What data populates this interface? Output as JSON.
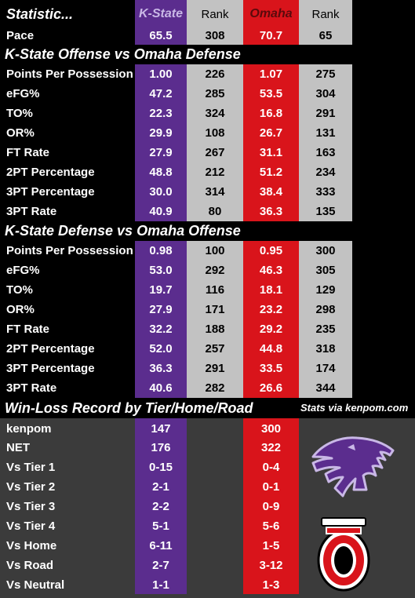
{
  "header": {
    "statistic": "Statistic...",
    "team1": "K-State",
    "rank1": "Rank",
    "team2": "Omaha",
    "rank2": "Rank"
  },
  "pace": {
    "label": "Pace",
    "v1": "65.5",
    "r1": "308",
    "v2": "70.7",
    "r2": "65"
  },
  "section_offense": {
    "title": "K-State Offense vs Omaha Defense",
    "rows": [
      {
        "label": "Points Per Possession",
        "v1": "1.00",
        "r1": "226",
        "v2": "1.07",
        "r2": "275"
      },
      {
        "label": "eFG%",
        "v1": "47.2",
        "r1": "285",
        "v2": "53.5",
        "r2": "304"
      },
      {
        "label": "TO%",
        "v1": "22.3",
        "r1": "324",
        "v2": "16.8",
        "r2": "291"
      },
      {
        "label": "OR%",
        "v1": "29.9",
        "r1": "108",
        "v2": "26.7",
        "r2": "131"
      },
      {
        "label": "FT Rate",
        "v1": "27.9",
        "r1": "267",
        "v2": "31.1",
        "r2": "163"
      },
      {
        "label": "2PT Percentage",
        "v1": "48.8",
        "r1": "212",
        "v2": "51.2",
        "r2": "234"
      },
      {
        "label": "3PT Percentage",
        "v1": "30.0",
        "r1": "314",
        "v2": "38.4",
        "r2": "333"
      },
      {
        "label": "3PT Rate",
        "v1": "40.9",
        "r1": "80",
        "v2": "36.3",
        "r2": "135"
      }
    ]
  },
  "section_defense": {
    "title": "K-State Defense vs Omaha Offense",
    "rows": [
      {
        "label": "Points Per Possession",
        "v1": "0.98",
        "r1": "100",
        "v2": "0.95",
        "r2": "300"
      },
      {
        "label": "eFG%",
        "v1": "53.0",
        "r1": "292",
        "v2": "46.3",
        "r2": "305"
      },
      {
        "label": "TO%",
        "v1": "19.7",
        "r1": "116",
        "v2": "18.1",
        "r2": "129"
      },
      {
        "label": "OR%",
        "v1": "27.9",
        "r1": "171",
        "v2": "23.2",
        "r2": "298"
      },
      {
        "label": "FT Rate",
        "v1": "32.2",
        "r1": "188",
        "v2": "29.2",
        "r2": "235"
      },
      {
        "label": "2PT Percentage",
        "v1": "52.0",
        "r1": "257",
        "v2": "44.8",
        "r2": "318"
      },
      {
        "label": "3PT Percentage",
        "v1": "36.3",
        "r1": "291",
        "v2": "33.5",
        "r2": "174"
      },
      {
        "label": "3PT Rate",
        "v1": "40.6",
        "r1": "282",
        "v2": "26.6",
        "r2": "344"
      }
    ]
  },
  "section_record": {
    "title": "Win-Loss Record by Tier/Home/Road",
    "credit": "Stats via kenpom.com",
    "rows": [
      {
        "label": "kenpom",
        "v1": "147",
        "v2": "300"
      },
      {
        "label": "NET",
        "v1": "176",
        "v2": "322"
      },
      {
        "label": "Vs Tier 1",
        "v1": "0-15",
        "v2": "0-4"
      },
      {
        "label": "Vs Tier 2",
        "v1": "2-1",
        "v2": "0-1"
      },
      {
        "label": "Vs Tier 3",
        "v1": "2-2",
        "v2": "0-9"
      },
      {
        "label": "Vs Tier 4",
        "v1": "5-1",
        "v2": "5-6"
      },
      {
        "label": "Vs Home",
        "v1": "6-11",
        "v2": "1-5"
      },
      {
        "label": "Vs Road",
        "v1": "2-7",
        "v2": "3-12"
      },
      {
        "label": "Vs Neutral",
        "v1": "1-1",
        "v2": "1-3"
      }
    ]
  },
  "logos": {
    "kstate": "kstate-wildcat-logo",
    "omaha": "omaha-o-logo"
  },
  "colors": {
    "kstate_purple": "#5b2d8e",
    "omaha_red": "#d9141b",
    "rank_gray": "#c2c2c2",
    "background": "#000000",
    "record_bg": "#3b3b3b"
  }
}
